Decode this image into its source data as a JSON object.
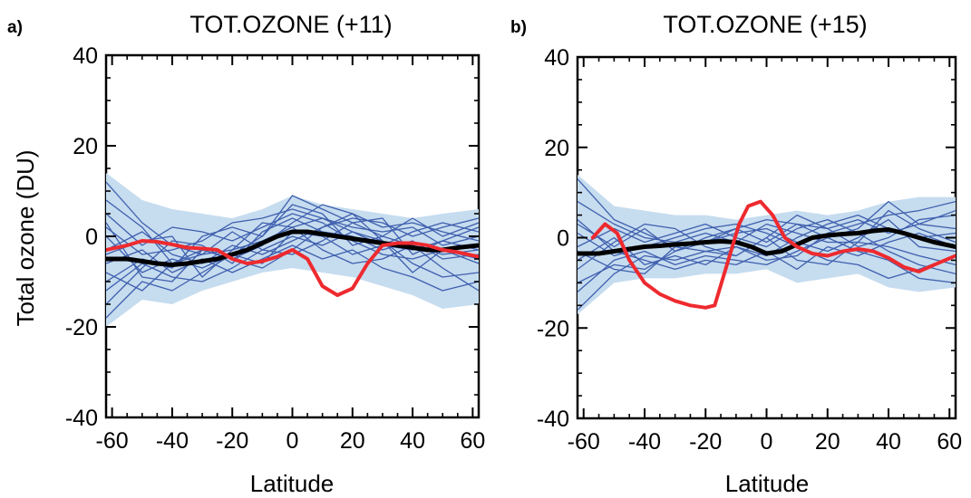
{
  "ylabel": "Total ozone (DU)",
  "chart_data": [
    {
      "type": "line",
      "panel_label": "a)",
      "title": "TOT.OZONE (+11)",
      "xlabel": "Latitude",
      "ylabel": "Total ozone (DU)",
      "xlim": [
        -62,
        62
      ],
      "ylim": [
        -40,
        40
      ],
      "xticks": [
        "-60",
        "-40",
        "-20",
        "0",
        "20",
        "40",
        "60"
      ],
      "yticks": [
        "-40",
        "-20",
        "0",
        "20",
        "40"
      ],
      "xtick_values": [
        -60,
        -40,
        -20,
        0,
        20,
        40,
        60
      ],
      "ytick_values": [
        -40,
        -20,
        0,
        20,
        40
      ],
      "grid": false,
      "legend": "none",
      "colors": {
        "band": "#c6dcef",
        "ensemble": "#3f5fae",
        "mean": "#000000",
        "obs": "#ee2a2f"
      },
      "band": {
        "x": [
          -62,
          -50,
          -40,
          -30,
          -20,
          -10,
          0,
          10,
          20,
          30,
          40,
          50,
          62
        ],
        "upper": [
          14,
          8,
          6,
          5,
          4,
          6,
          9,
          7,
          6,
          5,
          4,
          5,
          6
        ],
        "lower": [
          -20,
          -14,
          -15,
          -12,
          -10,
          -8,
          -7,
          -8,
          -9,
          -11,
          -13,
          -16,
          -15
        ]
      },
      "ensemble": [
        {
          "x": [
            -62,
            -50,
            -40,
            -30,
            -20,
            -10,
            0,
            10,
            20,
            30,
            40,
            50,
            62
          ],
          "y": [
            12,
            3,
            -2,
            -4,
            -3,
            -1,
            2,
            4,
            1,
            -2,
            -3,
            -1,
            2
          ]
        },
        {
          "x": [
            -62,
            -50,
            -40,
            -30,
            -20,
            -10,
            0,
            10,
            20,
            30,
            40,
            50,
            62
          ],
          "y": [
            -18,
            -10,
            -12,
            -8,
            -4,
            0,
            9,
            6,
            3,
            0,
            -2,
            -4,
            -3
          ]
        },
        {
          "x": [
            -62,
            -50,
            -40,
            -30,
            -20,
            -10,
            0,
            10,
            20,
            30,
            40,
            50,
            62
          ],
          "y": [
            -8,
            -12,
            -6,
            -3,
            -5,
            -2,
            3,
            7,
            5,
            2,
            3,
            1,
            -1
          ]
        },
        {
          "x": [
            -62,
            -50,
            -40,
            -30,
            -20,
            -10,
            0,
            10,
            20,
            30,
            40,
            50,
            62
          ],
          "y": [
            -3,
            1,
            -4,
            -6,
            -2,
            -4,
            -1,
            2,
            4,
            3,
            0,
            2,
            4
          ]
        },
        {
          "x": [
            -62,
            -50,
            -40,
            -30,
            -20,
            -10,
            0,
            10,
            20,
            30,
            40,
            50,
            62
          ],
          "y": [
            5,
            -2,
            2,
            1,
            -1,
            2,
            5,
            3,
            -1,
            -4,
            -5,
            -3,
            -6
          ]
        },
        {
          "x": [
            -62,
            -50,
            -40,
            -30,
            -20,
            -10,
            0,
            10,
            20,
            30,
            40,
            50,
            62
          ],
          "y": [
            -12,
            -6,
            -9,
            -10,
            -7,
            -3,
            0,
            -2,
            1,
            -1,
            -6,
            -9,
            -8
          ]
        },
        {
          "x": [
            -62,
            -50,
            -40,
            -30,
            -20,
            -10,
            0,
            10,
            20,
            30,
            40,
            50,
            62
          ],
          "y": [
            2,
            -4,
            -3,
            -1,
            3,
            4,
            6,
            4,
            2,
            1,
            2,
            -2,
            0
          ]
        },
        {
          "x": [
            -62,
            -50,
            -40,
            -30,
            -20,
            -10,
            0,
            10,
            20,
            30,
            40,
            50,
            62
          ],
          "y": [
            -6,
            -3,
            -8,
            -5,
            -8,
            -5,
            -2,
            -5,
            -3,
            -7,
            -9,
            -12,
            -10
          ]
        },
        {
          "x": [
            -62,
            -50,
            -40,
            -30,
            -20,
            -10,
            0,
            10,
            20,
            30,
            40,
            50,
            62
          ],
          "y": [
            0,
            -8,
            -5,
            -7,
            -4,
            -6,
            1,
            0,
            -4,
            -2,
            1,
            3,
            1
          ]
        },
        {
          "x": [
            -62,
            -50,
            -40,
            -30,
            -20,
            -10,
            0,
            10,
            20,
            30,
            40,
            50,
            62
          ],
          "y": [
            -15,
            -7,
            -1,
            -2,
            -6,
            1,
            4,
            1,
            0,
            -3,
            -1,
            -5,
            -4
          ]
        },
        {
          "x": [
            -62,
            -50,
            -40,
            -30,
            -20,
            -10,
            0,
            10,
            20,
            30,
            40,
            50,
            62
          ],
          "y": [
            8,
            2,
            -6,
            -4,
            1,
            -3,
            -4,
            -1,
            3,
            4,
            -4,
            -1,
            -3
          ]
        },
        {
          "x": [
            -62,
            -50,
            -40,
            -30,
            -20,
            -10,
            0,
            10,
            20,
            30,
            40,
            50,
            62
          ],
          "y": [
            -4,
            -1,
            0,
            -9,
            -3,
            3,
            2,
            -3,
            -6,
            -5,
            -2,
            -7,
            -12
          ]
        },
        {
          "x": [
            -62,
            -50,
            -40,
            -30,
            -20,
            -10,
            0,
            10,
            20,
            30,
            40,
            50,
            62
          ],
          "y": [
            -10,
            -5,
            -7,
            0,
            2,
            0,
            7,
            5,
            -2,
            0,
            4,
            0,
            3
          ]
        },
        {
          "x": [
            -62,
            -50,
            -40,
            -30,
            -20,
            -10,
            0,
            10,
            20,
            30,
            40,
            50,
            62
          ],
          "y": [
            3,
            -9,
            -10,
            -3,
            -5,
            -7,
            -3,
            2,
            5,
            -1,
            -8,
            -3,
            -5
          ]
        }
      ],
      "mean": {
        "x": [
          -62,
          -55,
          -50,
          -45,
          -40,
          -35,
          -30,
          -25,
          -20,
          -15,
          -10,
          -5,
          0,
          5,
          10,
          15,
          20,
          25,
          30,
          35,
          40,
          45,
          50,
          55,
          62
        ],
        "y": [
          -5,
          -5,
          -5.5,
          -6,
          -6.3,
          -6,
          -5.5,
          -5,
          -4,
          -3,
          -1.5,
          0,
          1,
          1,
          0.5,
          0,
          -0.5,
          -1,
          -1.5,
          -2,
          -2.5,
          -3,
          -3,
          -2.5,
          -2
        ]
      },
      "obs": {
        "x": [
          -62,
          -55,
          -50,
          -45,
          -40,
          -35,
          -30,
          -25,
          -20,
          -15,
          -10,
          -5,
          0,
          5,
          10,
          15,
          20,
          25,
          30,
          35,
          40,
          45,
          50,
          55,
          62
        ],
        "y": [
          -3,
          -2,
          -1,
          -1.2,
          -1.8,
          -2.5,
          -2.7,
          -3,
          -5,
          -6,
          -5.5,
          -4.5,
          -3,
          -5,
          -11,
          -13,
          -11.5,
          -6,
          -2,
          -1.5,
          -1.5,
          -2,
          -3,
          -3.5,
          -4.5
        ]
      }
    },
    {
      "type": "line",
      "panel_label": "b)",
      "title": "TOT.OZONE (+15)",
      "xlabel": "Latitude",
      "ylabel": "",
      "xlim": [
        -62,
        62
      ],
      "ylim": [
        -40,
        40
      ],
      "xticks": [
        "-60",
        "-40",
        "-20",
        "0",
        "20",
        "40",
        "60"
      ],
      "yticks": [
        "-40",
        "-20",
        "0",
        "20",
        "40"
      ],
      "xtick_values": [
        -60,
        -40,
        -20,
        0,
        20,
        40,
        60
      ],
      "ytick_values": [
        -40,
        -20,
        0,
        20,
        40
      ],
      "grid": false,
      "legend": "none",
      "colors": {
        "band": "#c6dcef",
        "ensemble": "#3f5fae",
        "mean": "#000000",
        "obs": "#ee2a2f"
      },
      "band": {
        "x": [
          -62,
          -50,
          -40,
          -30,
          -20,
          -10,
          0,
          10,
          20,
          30,
          40,
          50,
          62
        ],
        "upper": [
          14,
          7,
          6,
          5,
          5,
          4,
          5,
          6,
          5,
          6,
          8,
          9,
          9
        ],
        "lower": [
          -17,
          -10,
          -9,
          -9,
          -8,
          -8,
          -7,
          -10,
          -9,
          -8,
          -11,
          -12,
          -11
        ]
      },
      "ensemble": [
        {
          "x": [
            -62,
            -50,
            -40,
            -30,
            -20,
            -10,
            0,
            10,
            20,
            30,
            40,
            50,
            62
          ],
          "y": [
            13,
            4,
            1,
            -2,
            -1,
            2,
            4,
            3,
            0,
            2,
            8,
            3,
            2
          ]
        },
        {
          "x": [
            -62,
            -50,
            -40,
            -30,
            -20,
            -10,
            0,
            10,
            20,
            30,
            40,
            50,
            62
          ],
          "y": [
            -16,
            -8,
            -4,
            -5,
            -3,
            -2,
            -5,
            -4,
            1,
            3,
            5,
            6,
            8
          ]
        },
        {
          "x": [
            -62,
            -50,
            -40,
            -30,
            -20,
            -10,
            0,
            10,
            20,
            30,
            40,
            50,
            62
          ],
          "y": [
            -10,
            -6,
            -7,
            -3,
            -1,
            1,
            2,
            -1,
            -3,
            0,
            4,
            -2,
            -3
          ]
        },
        {
          "x": [
            -62,
            -50,
            -40,
            -30,
            -20,
            -10,
            0,
            10,
            20,
            30,
            40,
            50,
            62
          ],
          "y": [
            -2,
            2,
            -1,
            1,
            3,
            0,
            -2,
            2,
            4,
            1,
            -3,
            -6,
            -8
          ]
        },
        {
          "x": [
            -62,
            -50,
            -40,
            -30,
            -20,
            -10,
            0,
            10,
            20,
            30,
            40,
            50,
            62
          ],
          "y": [
            4,
            -3,
            -5,
            -7,
            -5,
            -6,
            -3,
            -7,
            -2,
            -4,
            -1,
            1,
            -2
          ]
        },
        {
          "x": [
            -62,
            -50,
            -40,
            -30,
            -20,
            -10,
            0,
            10,
            20,
            30,
            40,
            50,
            62
          ],
          "y": [
            -7,
            -1,
            3,
            2,
            -2,
            -4,
            0,
            5,
            2,
            -2,
            0,
            4,
            5
          ]
        },
        {
          "x": [
            -62,
            -50,
            -40,
            -30,
            -20,
            -10,
            0,
            10,
            20,
            30,
            40,
            50,
            62
          ],
          "y": [
            1,
            -4,
            -2,
            0,
            2,
            3,
            1,
            -2,
            -5,
            -6,
            -9,
            -7,
            -4
          ]
        },
        {
          "x": [
            -62,
            -50,
            -40,
            -30,
            -20,
            -10,
            0,
            10,
            20,
            30,
            40,
            50,
            62
          ],
          "y": [
            -5,
            0,
            -6,
            -4,
            -6,
            -2,
            -4,
            0,
            3,
            5,
            2,
            0,
            1
          ]
        },
        {
          "x": [
            -62,
            -50,
            -40,
            -30,
            -20,
            -10,
            0,
            10,
            20,
            30,
            40,
            50,
            62
          ],
          "y": [
            8,
            3,
            0,
            -1,
            1,
            -1,
            3,
            1,
            -1,
            -1,
            6,
            2,
            -1
          ]
        },
        {
          "x": [
            -62,
            -50,
            -40,
            -30,
            -20,
            -10,
            0,
            10,
            20,
            30,
            40,
            50,
            62
          ],
          "y": [
            -12,
            -5,
            -3,
            -6,
            -4,
            -5,
            -6,
            -3,
            0,
            -3,
            -5,
            -9,
            -10
          ]
        },
        {
          "x": [
            -62,
            -50,
            -40,
            -30,
            -20,
            -10,
            0,
            10,
            20,
            30,
            40,
            50,
            62
          ],
          "y": [
            3,
            -2,
            2,
            -3,
            0,
            2,
            -1,
            3,
            2,
            4,
            1,
            3,
            6
          ]
        },
        {
          "x": [
            -62,
            -50,
            -40,
            -30,
            -20,
            -10,
            0,
            10,
            20,
            30,
            40,
            50,
            62
          ],
          "y": [
            -3,
            -7,
            -8,
            -2,
            -3,
            -4,
            0,
            -5,
            -6,
            -1,
            -2,
            -4,
            -6
          ]
        }
      ],
      "mean": {
        "x": [
          -62,
          -55,
          -50,
          -45,
          -40,
          -35,
          -30,
          -25,
          -20,
          -15,
          -10,
          -5,
          0,
          5,
          10,
          15,
          20,
          25,
          30,
          35,
          40,
          45,
          50,
          55,
          62
        ],
        "y": [
          -3.5,
          -3.5,
          -3,
          -2.5,
          -2,
          -1.8,
          -1.5,
          -1.3,
          -1,
          -0.8,
          -1,
          -2,
          -3.5,
          -3,
          -1.5,
          0,
          0.5,
          0.8,
          1,
          1.5,
          1.8,
          1,
          0,
          -1,
          -2
        ]
      },
      "obs": {
        "x": [
          -57,
          -53,
          -49,
          -45,
          -40,
          -35,
          -30,
          -25,
          -20,
          -17,
          -13,
          -9,
          -6,
          -2,
          2,
          6,
          10,
          15,
          20,
          25,
          30,
          35,
          40,
          45,
          50,
          55,
          62
        ],
        "y": [
          0,
          3,
          1,
          -5,
          -10,
          -12.5,
          -14,
          -15,
          -15.5,
          -15,
          -6,
          3,
          7,
          8,
          5,
          0,
          -2,
          -3.5,
          -4,
          -3,
          -2.5,
          -3,
          -4.5,
          -6.5,
          -7.5,
          -6,
          -4
        ]
      }
    }
  ]
}
